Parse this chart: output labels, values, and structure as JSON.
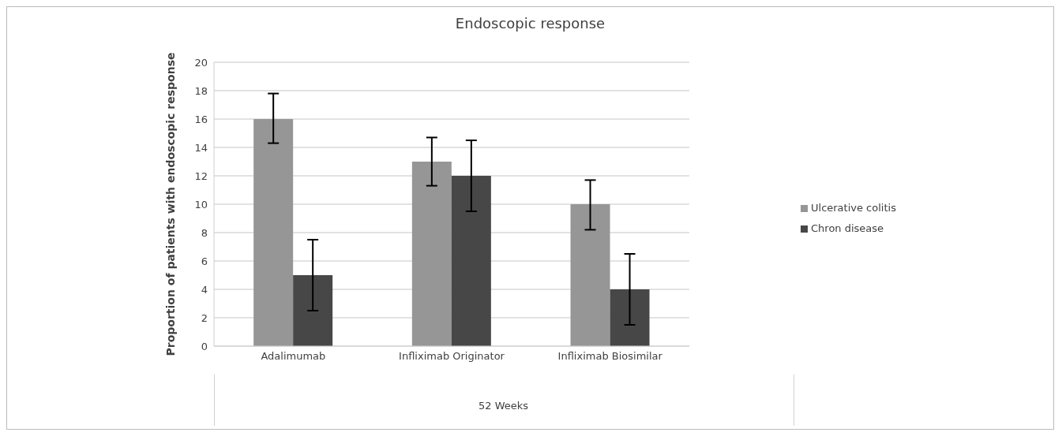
{
  "chart_data": {
    "type": "bar",
    "title": "Endoscopic response",
    "xlabel": "52 Weeks",
    "ylabel": "Proportion of patients with endoscopic response",
    "categories": [
      "Adalimumab",
      "Infliximab Originator",
      "Infliximab Biosimilar"
    ],
    "series": [
      {
        "name": "Ulcerative colitis",
        "color": "#969696",
        "values": [
          16,
          13,
          10
        ],
        "errors": [
          [
            14.3,
            17.8
          ],
          [
            11.3,
            14.7
          ],
          [
            8.2,
            11.7
          ]
        ]
      },
      {
        "name": "Chron disease",
        "color": "#474747",
        "values": [
          5,
          12,
          4
        ],
        "errors": [
          [
            2.5,
            7.5
          ],
          [
            9.5,
            14.5
          ],
          [
            1.5,
            6.5
          ]
        ]
      }
    ],
    "ylim": [
      0,
      20
    ],
    "yticks": [
      0,
      2,
      4,
      6,
      8,
      10,
      12,
      14,
      16,
      18,
      20
    ],
    "grid": "y",
    "legend": "right"
  }
}
